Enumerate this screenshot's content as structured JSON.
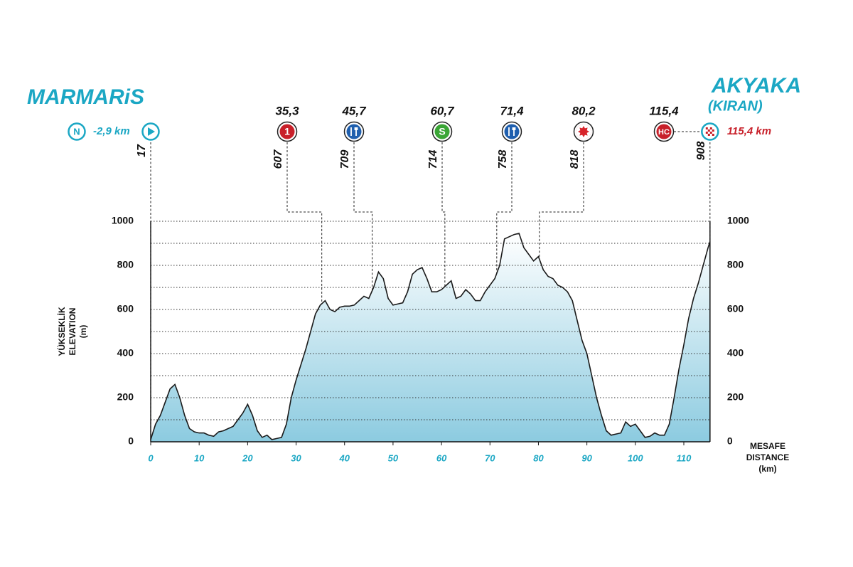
{
  "chart_data": {
    "type": "elevation-profile",
    "start_name": "MARMARiS",
    "finish_name": "AKYAKA",
    "finish_subname": "(KIRAN)",
    "y_label": [
      "YÜKSEKLİK",
      "ELEVATION",
      "(m)"
    ],
    "x_label": [
      "MESAFE",
      "DISTANCE",
      "(km)"
    ],
    "x": [
      0,
      1,
      2,
      3,
      4,
      5,
      6,
      7,
      8,
      9,
      10,
      11,
      12,
      13,
      14,
      15,
      16,
      17,
      18,
      19,
      20,
      21,
      22,
      23,
      24,
      25,
      26,
      27,
      28,
      29,
      30,
      31,
      32,
      33,
      34,
      35,
      36,
      37,
      38,
      39,
      40,
      41,
      42,
      43,
      44,
      45,
      46,
      47,
      48,
      49,
      50,
      51,
      52,
      53,
      54,
      55,
      56,
      57,
      58,
      59,
      60,
      61,
      62,
      63,
      64,
      65,
      66,
      67,
      68,
      69,
      70,
      71,
      72,
      73,
      74,
      75,
      76,
      77,
      78,
      79,
      80,
      81,
      82,
      83,
      84,
      85,
      86,
      87,
      88,
      89,
      90,
      91,
      92,
      93,
      94,
      95,
      96,
      97,
      98,
      99,
      100,
      101,
      102,
      103,
      104,
      105,
      106,
      107,
      108,
      109,
      110,
      111,
      112,
      113,
      114,
      115,
      115.4
    ],
    "values": [
      10,
      80,
      120,
      180,
      240,
      260,
      200,
      120,
      60,
      45,
      40,
      40,
      30,
      25,
      45,
      50,
      60,
      70,
      100,
      130,
      170,
      120,
      50,
      20,
      30,
      10,
      15,
      20,
      80,
      200,
      280,
      350,
      420,
      500,
      580,
      620,
      640,
      600,
      590,
      610,
      615,
      615,
      620,
      640,
      660,
      650,
      700,
      770,
      740,
      650,
      620,
      625,
      630,
      680,
      760,
      780,
      790,
      740,
      680,
      680,
      690,
      710,
      730,
      650,
      660,
      690,
      670,
      640,
      640,
      680,
      710,
      740,
      800,
      920,
      930,
      940,
      945,
      880,
      850,
      820,
      840,
      780,
      750,
      740,
      710,
      700,
      680,
      640,
      550,
      460,
      400,
      300,
      200,
      120,
      50,
      30,
      35,
      40,
      90,
      70,
      80,
      50,
      20,
      25,
      40,
      30,
      30,
      80,
      200,
      330,
      440,
      560,
      650,
      720,
      800,
      880,
      908
    ],
    "xlim": [
      0,
      115.4
    ],
    "xticks": [
      0,
      10,
      20,
      30,
      40,
      50,
      60,
      70,
      80,
      90,
      100,
      110
    ],
    "ylim": [
      0,
      1000
    ],
    "yticks": [
      0,
      200,
      400,
      600,
      800,
      1000
    ],
    "minor_yticks": [
      100,
      300,
      500,
      700,
      900
    ],
    "grid": true,
    "line_color": "#1a1a1a",
    "fill_top": "#ffffff",
    "fill_bottom": "#8ccbe0",
    "start": {
      "km": 0,
      "elevation": 17,
      "neutral_icon": "N",
      "neutral_label": "-2,9 km"
    },
    "finish": {
      "km": {
        "value": 115.4,
        "label": "115,4 km"
      },
      "elevation": 908
    },
    "waypoints": [
      {
        "km": {
          "value": 35.3,
          "label": "35,3"
        },
        "elevation": 607,
        "kind": "climb",
        "icon": "1",
        "color": "#c8202a"
      },
      {
        "km": {
          "value": 45.7,
          "label": "45,7"
        },
        "elevation": 709,
        "kind": "feed",
        "color": "#1f5fae"
      },
      {
        "km": {
          "value": 60.7,
          "label": "60,7"
        },
        "elevation": 714,
        "kind": "sprint",
        "icon": "S",
        "color": "#3aa535"
      },
      {
        "km": {
          "value": 71.4,
          "label": "71,4"
        },
        "elevation": 758,
        "kind": "feed",
        "color": "#1f5fae"
      },
      {
        "km": {
          "value": 80.2,
          "label": "80,2"
        },
        "elevation": 818,
        "kind": "bonus",
        "color": "#d8232a"
      },
      {
        "km": {
          "value": 115.4,
          "label": "115,4"
        },
        "kind": "climb",
        "icon": "HC",
        "color": "#c8202a"
      }
    ]
  }
}
